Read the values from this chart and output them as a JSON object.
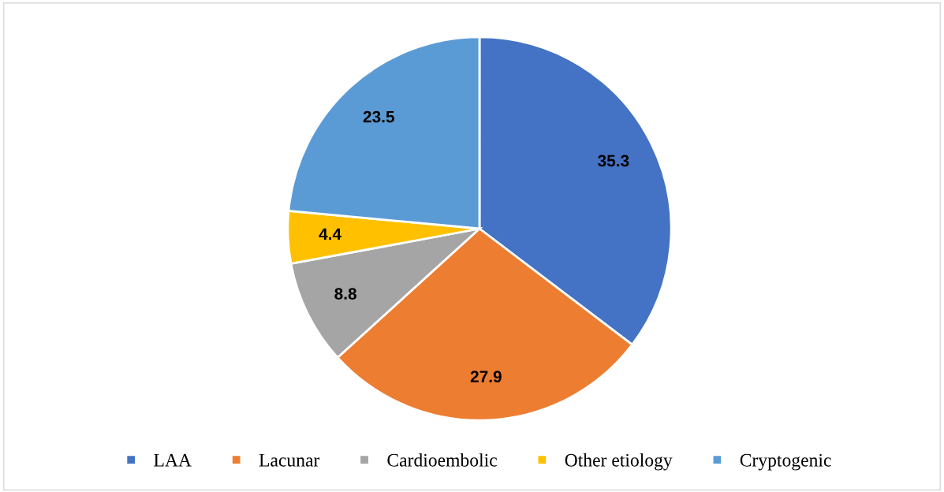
{
  "chart_data": {
    "type": "pie",
    "categories": [
      "LAA",
      "Lacunar",
      "Cardioembolic",
      "Other etiology",
      "Cryptogenic"
    ],
    "values": [
      35.3,
      27.9,
      8.8,
      4.4,
      23.5
    ],
    "colors": [
      "#4472c4",
      "#ed7d31",
      "#a5a5a5",
      "#ffc000",
      "#5b9bd5"
    ],
    "data_labels": true,
    "legend": "bottom"
  }
}
